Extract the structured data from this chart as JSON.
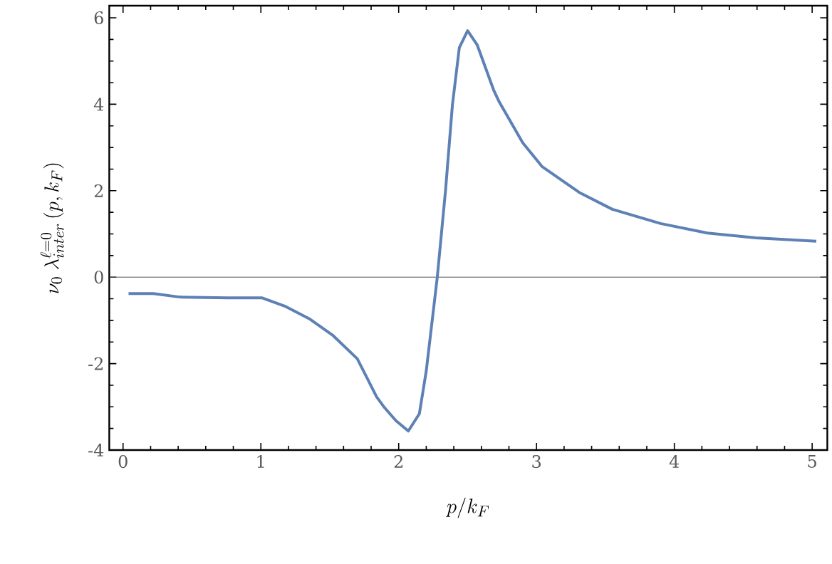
{
  "chart_data": {
    "type": "line",
    "xlabel": "p/k_F",
    "ylabel": "\\nu_0\\;\\lambda^{\\ell=0}_{inter}\\,(p,k_F)",
    "xlim": [
      -0.1,
      5.11
    ],
    "ylim": [
      -4,
      6.28
    ],
    "xticks": [
      0,
      1,
      2,
      3,
      4,
      5
    ],
    "yticks": [
      -4,
      -2,
      0,
      2,
      4,
      6
    ],
    "grid": false,
    "marker": "none",
    "line_style": "solid",
    "ref_lines": [
      {
        "axis": "y",
        "value": 0,
        "color": "#555555"
      }
    ],
    "series": [
      {
        "color": "#5e81b5",
        "x": [
          0.04,
          0.22,
          0.41,
          0.76,
          1.01,
          1.18,
          1.35,
          1.52,
          1.7,
          1.84,
          1.89,
          1.98,
          2.07,
          2.15,
          2.2,
          2.28,
          2.34,
          2.39,
          2.44,
          2.5,
          2.57,
          2.69,
          2.73,
          2.9,
          3.04,
          3.31,
          3.55,
          3.9,
          4.24,
          4.59,
          5.03
        ],
        "values": [
          -0.38,
          -0.38,
          -0.46,
          -0.48,
          -0.48,
          -0.68,
          -0.96,
          -1.34,
          -1.89,
          -2.77,
          -2.99,
          -3.32,
          -3.56,
          -3.16,
          -2.17,
          0.0,
          2.01,
          3.99,
          5.31,
          5.7,
          5.37,
          4.32,
          4.05,
          3.11,
          2.56,
          1.96,
          1.57,
          1.24,
          1.02,
          0.91,
          0.83
        ]
      }
    ]
  }
}
